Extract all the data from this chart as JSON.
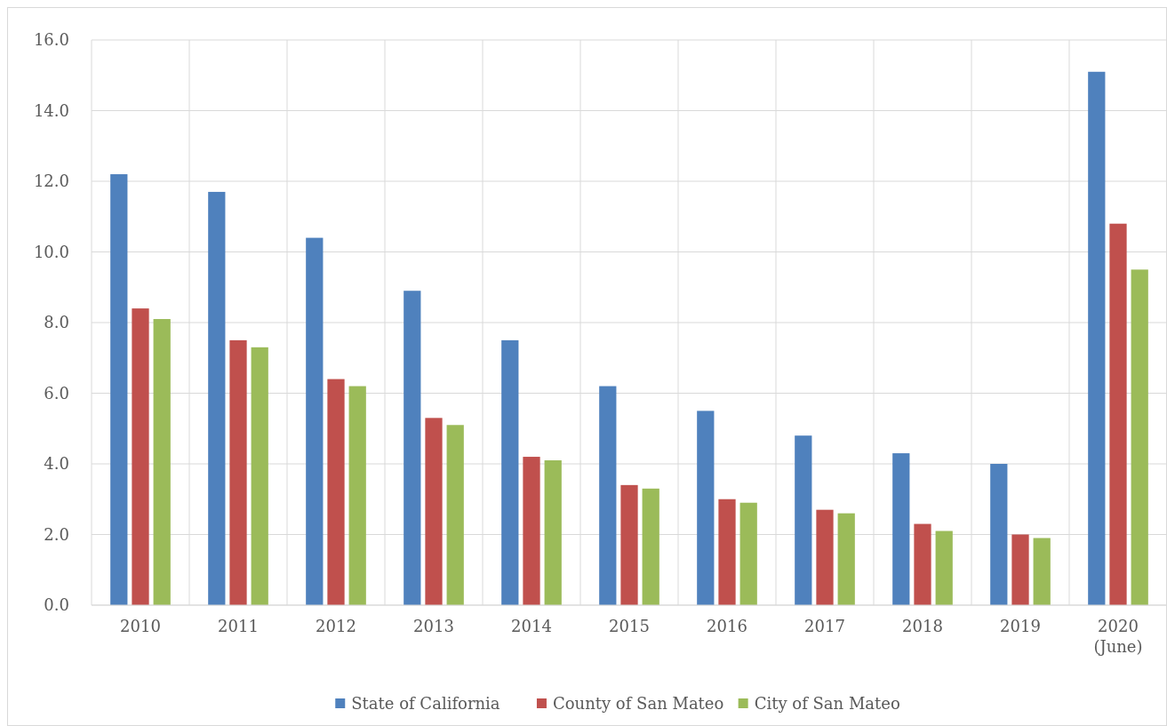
{
  "chart_data": {
    "type": "bar",
    "categories": [
      "2010",
      "2011",
      "2012",
      "2013",
      "2014",
      "2015",
      "2016",
      "2017",
      "2018",
      "2019",
      "2020\n(June)"
    ],
    "series": [
      {
        "name": "State of California",
        "color": "#4f81bd",
        "values": [
          12.2,
          11.7,
          10.4,
          8.9,
          7.5,
          6.2,
          5.5,
          4.8,
          4.3,
          4.0,
          15.1
        ]
      },
      {
        "name": "County of San Mateo",
        "color": "#c0504d",
        "values": [
          8.4,
          7.5,
          6.4,
          5.3,
          4.2,
          3.4,
          3.0,
          2.7,
          2.3,
          2.0,
          10.8
        ]
      },
      {
        "name": "City of San Mateo",
        "color": "#9bbb59",
        "values": [
          8.1,
          7.3,
          6.2,
          5.1,
          4.1,
          3.3,
          2.9,
          2.6,
          2.1,
          1.9,
          9.5
        ]
      }
    ],
    "ylim": [
      0,
      16
    ],
    "yticks": [
      {
        "value": 0,
        "label": "0.0"
      },
      {
        "value": 2,
        "label": "2.0"
      },
      {
        "value": 4,
        "label": "4.0"
      },
      {
        "value": 6,
        "label": "6.0"
      },
      {
        "value": 8,
        "label": "8.0"
      },
      {
        "value": 10,
        "label": "10.0"
      },
      {
        "value": 12,
        "label": "12.0"
      },
      {
        "value": 14,
        "label": "14.0"
      },
      {
        "value": 16,
        "label": "16.0"
      }
    ],
    "grid": true,
    "legend": "bottom"
  }
}
